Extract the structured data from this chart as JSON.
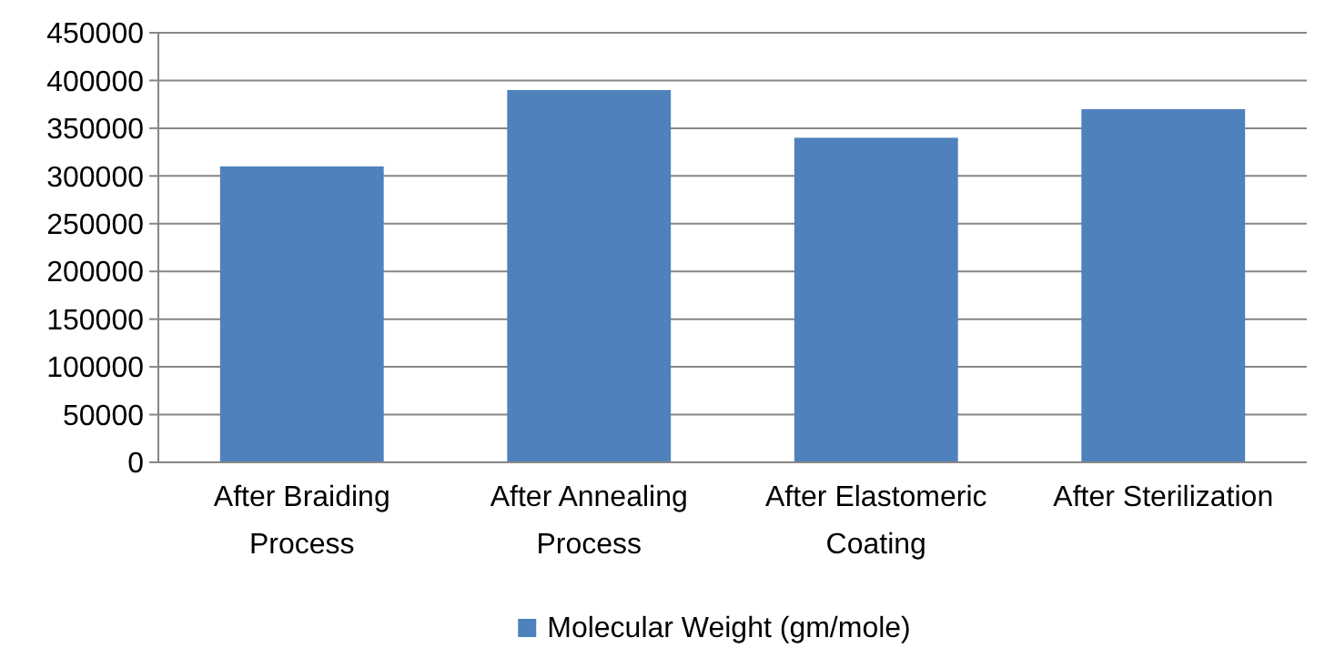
{
  "chart_data": {
    "type": "bar",
    "categories": [
      "After Braiding Process",
      "After Annealing Process",
      "After Elastomeric Coating",
      "After Sterilization"
    ],
    "series": [
      {
        "name": "Molecular Weight (gm/mole)",
        "color": "#4f81bd",
        "values": [
          310000,
          390000,
          340000,
          370000
        ]
      }
    ],
    "ylim": [
      0,
      450000
    ],
    "yticks": [
      0,
      50000,
      100000,
      150000,
      200000,
      250000,
      300000,
      350000,
      400000,
      450000
    ],
    "grid": "y",
    "legend": "bottom"
  }
}
